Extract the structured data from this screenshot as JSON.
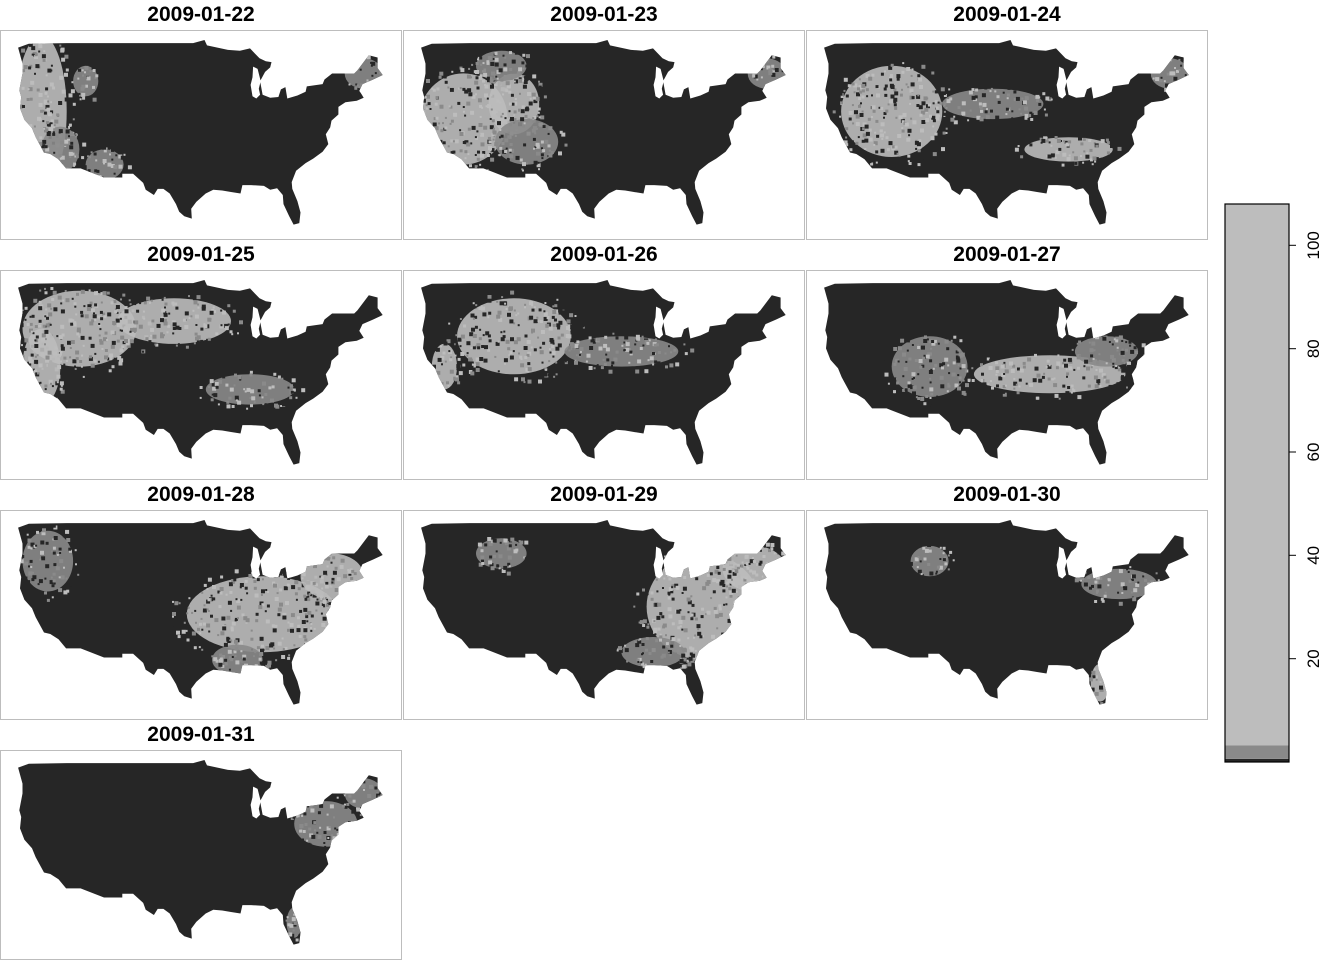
{
  "panels": [
    {
      "date": "2009-01-22",
      "blobs": [
        {
          "lon": -121,
          "lat": 40,
          "w": 4,
          "h": 10,
          "level": 2
        },
        {
          "lon": -118,
          "lat": 35,
          "w": 3,
          "h": 3,
          "level": 3
        },
        {
          "lon": -111,
          "lat": 33,
          "w": 3,
          "h": 2,
          "level": 3
        },
        {
          "lon": -70,
          "lat": 45,
          "w": 3,
          "h": 2,
          "level": 3
        },
        {
          "lon": -114,
          "lat": 44,
          "w": 2,
          "h": 2,
          "level": 3
        }
      ]
    },
    {
      "date": "2009-01-23",
      "blobs": [
        {
          "lon": -118,
          "lat": 39,
          "w": 7,
          "h": 6,
          "level": 2
        },
        {
          "lon": -110,
          "lat": 41,
          "w": 4,
          "h": 4,
          "level": 2
        },
        {
          "lon": -108,
          "lat": 36,
          "w": 5,
          "h": 3,
          "level": 3
        },
        {
          "lon": -112,
          "lat": 46,
          "w": 4,
          "h": 2,
          "level": 3
        },
        {
          "lon": -70,
          "lat": 45,
          "w": 3,
          "h": 2,
          "level": 3
        }
      ]
    },
    {
      "date": "2009-01-24",
      "blobs": [
        {
          "lon": -114,
          "lat": 40,
          "w": 8,
          "h": 6,
          "level": 2
        },
        {
          "lon": -98,
          "lat": 41,
          "w": 8,
          "h": 2,
          "level": 3
        },
        {
          "lon": -86,
          "lat": 35,
          "w": 7,
          "h": 1.6,
          "level": 2
        },
        {
          "lon": -70,
          "lat": 45,
          "w": 3,
          "h": 2,
          "level": 3
        }
      ]
    },
    {
      "date": "2009-01-25",
      "blobs": [
        {
          "lon": -115,
          "lat": 43,
          "w": 9,
          "h": 5,
          "level": 2
        },
        {
          "lon": -100,
          "lat": 44,
          "w": 9,
          "h": 3,
          "level": 2
        },
        {
          "lon": -88,
          "lat": 35,
          "w": 7,
          "h": 2,
          "level": 3
        },
        {
          "lon": -121,
          "lat": 38,
          "w": 3,
          "h": 5,
          "level": 2
        }
      ]
    },
    {
      "date": "2009-01-26",
      "blobs": [
        {
          "lon": -110,
          "lat": 42,
          "w": 9,
          "h": 5,
          "level": 2
        },
        {
          "lon": -93,
          "lat": 40,
          "w": 9,
          "h": 2,
          "level": 3
        },
        {
          "lon": -121,
          "lat": 38,
          "w": 2,
          "h": 3,
          "level": 2
        }
      ]
    },
    {
      "date": "2009-01-27",
      "blobs": [
        {
          "lon": -89,
          "lat": 37,
          "w": 12,
          "h": 2.5,
          "level": 2
        },
        {
          "lon": -108,
          "lat": 38,
          "w": 6,
          "h": 4,
          "level": 3
        },
        {
          "lon": -80,
          "lat": 40,
          "w": 5,
          "h": 2,
          "level": 3
        }
      ]
    },
    {
      "date": "2009-01-28",
      "blobs": [
        {
          "lon": -86,
          "lat": 37,
          "w": 12,
          "h": 5,
          "level": 2
        },
        {
          "lon": -75,
          "lat": 42,
          "w": 5,
          "h": 3,
          "level": 2
        },
        {
          "lon": -120,
          "lat": 44,
          "w": 4,
          "h": 4,
          "level": 3
        },
        {
          "lon": -90,
          "lat": 31,
          "w": 4,
          "h": 2,
          "level": 3
        }
      ]
    },
    {
      "date": "2009-01-29",
      "blobs": [
        {
          "lon": -80,
          "lat": 38,
          "w": 9,
          "h": 7,
          "level": 2
        },
        {
          "lon": -72,
          "lat": 43,
          "w": 5,
          "h": 3,
          "level": 2
        },
        {
          "lon": -88,
          "lat": 32,
          "w": 5,
          "h": 2,
          "level": 3
        },
        {
          "lon": -112,
          "lat": 45,
          "w": 4,
          "h": 2,
          "level": 3
        }
      ]
    },
    {
      "date": "2009-01-30",
      "blobs": [
        {
          "lon": -78,
          "lat": 41,
          "w": 6,
          "h": 2,
          "level": 3
        },
        {
          "lon": -81,
          "lat": 28,
          "w": 1.5,
          "h": 2.5,
          "level": 2
        },
        {
          "lon": -108,
          "lat": 44,
          "w": 3,
          "h": 2,
          "level": 3
        }
      ]
    },
    {
      "date": "2009-01-31",
      "blobs": [
        {
          "lon": -76,
          "lat": 41,
          "w": 5,
          "h": 3,
          "level": 3
        },
        {
          "lon": -81,
          "lat": 28,
          "w": 1.2,
          "h": 2,
          "level": 3
        },
        {
          "lon": -70,
          "lat": 45,
          "w": 3,
          "h": 2,
          "level": 3
        }
      ]
    }
  ],
  "map_colors": {
    "land": "#262626",
    "level2": "#bdbdbd",
    "level3": "#8a8a8a",
    "water": "#ffffff"
  },
  "legend": {
    "ticks": [
      "20",
      "40",
      "60",
      "80",
      "100"
    ],
    "tick_values": [
      20,
      40,
      60,
      80,
      100
    ],
    "range": [
      0,
      108
    ],
    "bands": [
      {
        "from": 0,
        "to": 0.6,
        "color": "#262626"
      },
      {
        "from": 0.6,
        "to": 3.2,
        "color": "#8a8a8a"
      },
      {
        "from": 3.2,
        "to": 108,
        "color": "#bdbdbd"
      }
    ]
  }
}
